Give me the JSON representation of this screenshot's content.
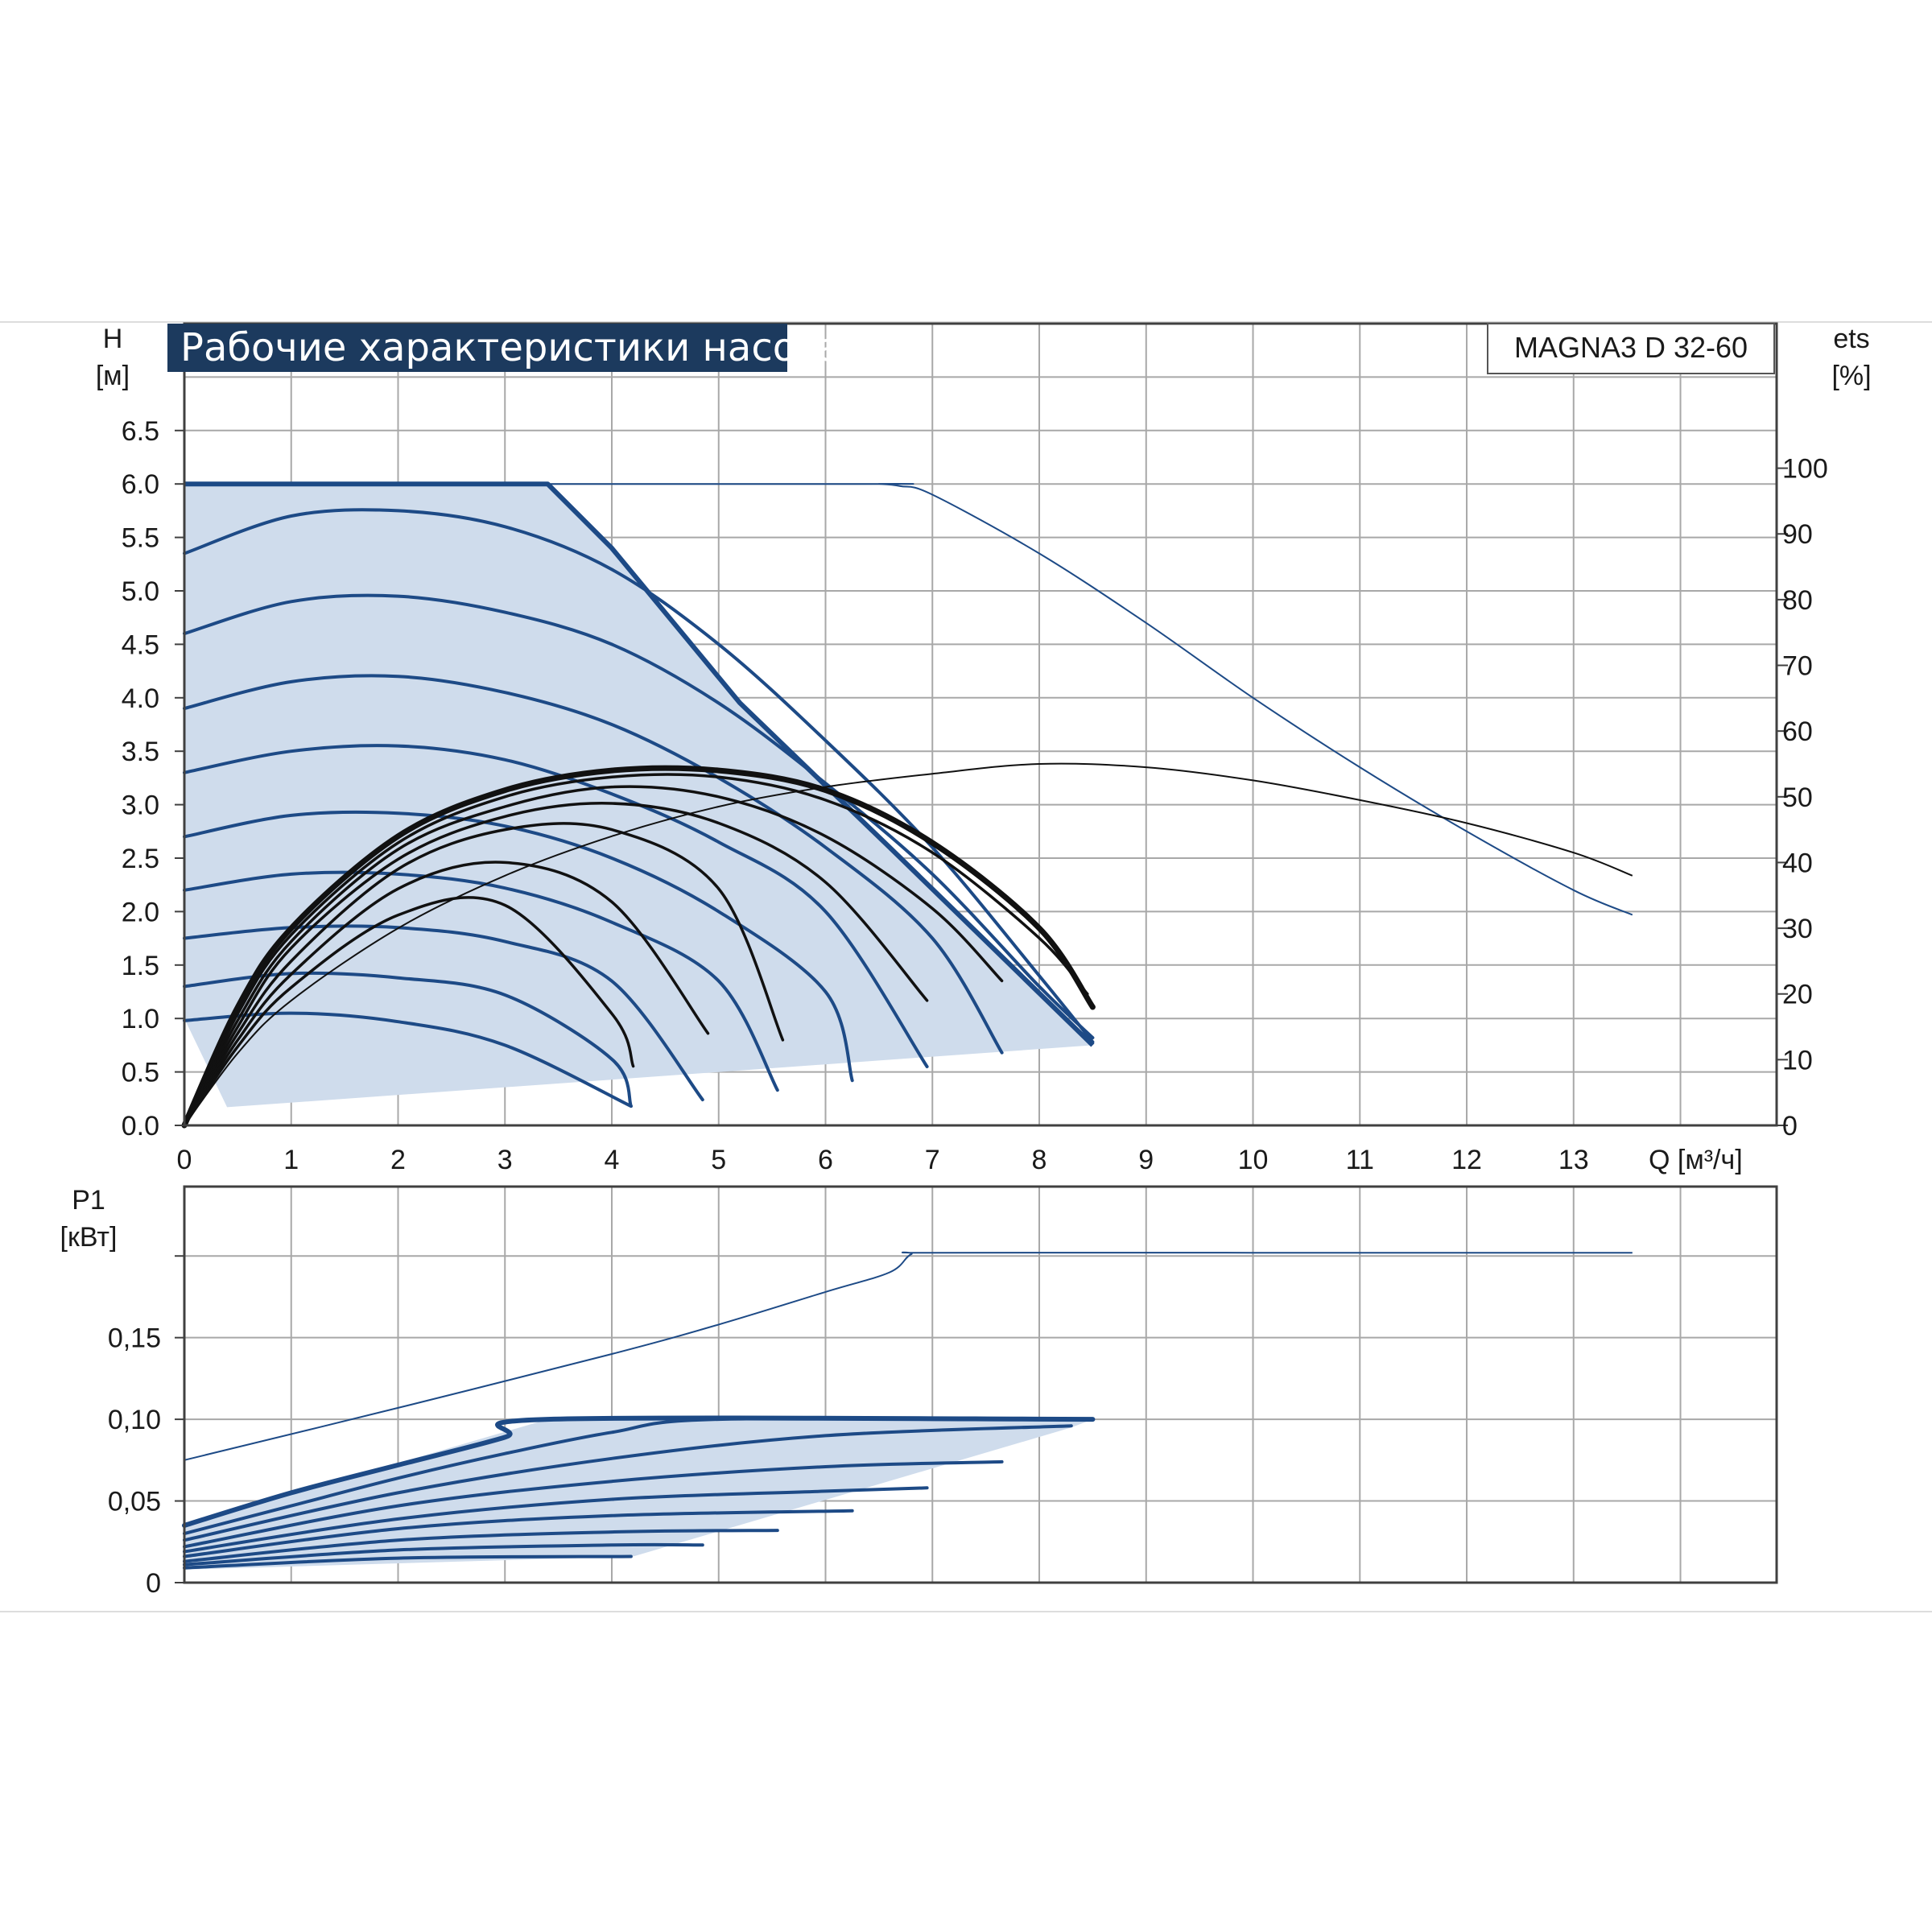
{
  "colors": {
    "curve_blue": "#1d4a86",
    "fill_blue": "#cfdcec",
    "curve_black": "#111111",
    "grid": "#a8a8a8",
    "title_bg": "#1c3a5e"
  },
  "header": {
    "title": "Рабочие характеристики насоса",
    "model": "MAGNA3 D 32-60"
  },
  "chart_data": [
    {
      "id": "head",
      "type": "line",
      "title": "Рабочие характеристики насоса",
      "ylabel_symbol": "H",
      "ylabel_unit": "[м]",
      "y2label_symbol": "ets",
      "y2label_unit": "[%]",
      "xlabel": "Q [м³/ч]",
      "xlim": [
        0,
        14.9
      ],
      "ylim": [
        0,
        7.5
      ],
      "y2lim": [
        0,
        122
      ],
      "grid": true,
      "x_ticks": [
        "0",
        "1",
        "2",
        "3",
        "4",
        "5",
        "6",
        "7",
        "8",
        "9",
        "10",
        "11",
        "12",
        "13"
      ],
      "y_ticks": [
        "0.0",
        "0.5",
        "1.0",
        "1.5",
        "2.0",
        "2.5",
        "3.0",
        "3.5",
        "4.0",
        "4.5",
        "5.0",
        "5.5",
        "6.0",
        "6.5"
      ],
      "y2_ticks": [
        "0",
        "10",
        "20",
        "30",
        "40",
        "50",
        "60",
        "70",
        "80",
        "90",
        "100"
      ],
      "operating_envelope": {
        "x": [
          0,
          3.4,
          4.0,
          5.2,
          6.6,
          8.5,
          0.4,
          0
        ],
        "y": [
          6.0,
          6.0,
          5.4,
          3.95,
          2.6,
          0.75,
          0.17,
          1.0
        ]
      },
      "max_curve": {
        "x": [
          0,
          6.3,
          6.5,
          6.7,
          7.0,
          8.0,
          9.0,
          10.0,
          11.0,
          12.0,
          13.0,
          13.55
        ],
        "y": [
          6.0,
          6.0,
          6.0,
          5.98,
          5.9,
          5.35,
          4.7,
          4.0,
          3.35,
          2.75,
          2.2,
          1.97
        ]
      },
      "max_efficiency": {
        "x": [
          0,
          0.5,
          1,
          2,
          3,
          4,
          5,
          6,
          7,
          8,
          9,
          10,
          11,
          12,
          13,
          13.55
        ],
        "y": [
          0,
          11,
          19,
          30,
          38,
          44,
          48.5,
          51.5,
          53.5,
          55,
          54.5,
          52.5,
          49.5,
          46,
          41.5,
          38
        ]
      },
      "speed_curves": [
        {
          "x": [
            0,
            1,
            2,
            3,
            4,
            5,
            6,
            7,
            8,
            8.5
          ],
          "y": [
            5.35,
            5.7,
            5.75,
            5.6,
            5.2,
            4.5,
            3.6,
            2.6,
            1.4,
            0.78
          ]
        },
        {
          "x": [
            0,
            1,
            2,
            3,
            4,
            5,
            6,
            7,
            8,
            8.5
          ],
          "y": [
            4.6,
            4.9,
            4.95,
            4.8,
            4.5,
            3.95,
            3.2,
            2.35,
            1.3,
            0.82
          ]
        },
        {
          "x": [
            0,
            1,
            2,
            3,
            4,
            5,
            6,
            7,
            7.65
          ],
          "y": [
            3.9,
            4.15,
            4.2,
            4.05,
            3.75,
            3.25,
            2.6,
            1.75,
            0.68
          ]
        },
        {
          "x": [
            0,
            1,
            2,
            3,
            4,
            5,
            6,
            6.95
          ],
          "y": [
            3.3,
            3.5,
            3.55,
            3.42,
            3.1,
            2.65,
            2.0,
            0.55
          ]
        },
        {
          "x": [
            0,
            1,
            2,
            3,
            4,
            5,
            6,
            6.25
          ],
          "y": [
            2.7,
            2.9,
            2.92,
            2.8,
            2.5,
            2.0,
            1.25,
            0.42
          ]
        },
        {
          "x": [
            0,
            1,
            2,
            3,
            4,
            5,
            5.55
          ],
          "y": [
            2.2,
            2.35,
            2.35,
            2.22,
            1.9,
            1.35,
            0.33
          ]
        },
        {
          "x": [
            0,
            1,
            2,
            3,
            4,
            4.85
          ],
          "y": [
            1.75,
            1.85,
            1.85,
            1.72,
            1.35,
            0.24
          ]
        },
        {
          "x": [
            0,
            1,
            2,
            3,
            4,
            4.18
          ],
          "y": [
            1.3,
            1.42,
            1.38,
            1.22,
            0.62,
            0.18
          ]
        },
        {
          "x": [
            0,
            1,
            2,
            3,
            4.18
          ],
          "y": [
            0.98,
            1.05,
            0.97,
            0.75,
            0.18
          ]
        }
      ],
      "efficiency_curves": [
        {
          "x": [
            0,
            0.5,
            1,
            2,
            3,
            4,
            5,
            6,
            7,
            8,
            8.5
          ],
          "y": [
            0,
            18,
            30,
            44,
            51,
            54,
            54,
            51,
            43,
            30,
            18
          ]
        },
        {
          "x": [
            0,
            0.5,
            1,
            2,
            3,
            4,
            5,
            6,
            7,
            8,
            8.45
          ],
          "y": [
            0,
            17,
            29,
            43,
            50,
            53,
            53,
            49.5,
            41.5,
            28.5,
            20
          ]
        },
        {
          "x": [
            0,
            0.5,
            1,
            2,
            3,
            4,
            5,
            6,
            7,
            7.65
          ],
          "y": [
            0,
            16,
            28,
            42,
            48.5,
            51.5,
            50,
            44,
            33,
            22
          ]
        },
        {
          "x": [
            0,
            0.5,
            1,
            2,
            3,
            4,
            5,
            6,
            6.95
          ],
          "y": [
            0,
            15,
            27,
            40.5,
            47,
            49,
            46,
            37,
            19
          ]
        },
        {
          "x": [
            0,
            0.5,
            1,
            2,
            3,
            4,
            5,
            5.6
          ],
          "y": [
            0,
            14,
            25,
            39,
            45,
            45,
            36,
            13
          ]
        },
        {
          "x": [
            0,
            0.5,
            1,
            2,
            3,
            4,
            4.9
          ],
          "y": [
            0,
            13,
            23,
            36,
            40,
            34,
            14
          ]
        },
        {
          "x": [
            0,
            0.5,
            1,
            2,
            3,
            4,
            4.2
          ],
          "y": [
            0,
            12,
            21,
            32,
            33.5,
            17,
            9
          ]
        }
      ]
    },
    {
      "id": "power",
      "type": "line",
      "ylabel_symbol": "P1",
      "ylabel_unit": "[кВт]",
      "xlim": [
        0,
        14.9
      ],
      "ylim": [
        0,
        0.2425
      ],
      "grid": true,
      "y_ticks": [
        "0",
        "0,05",
        "0,10",
        "0,15"
      ],
      "operating_envelope": {
        "x": [
          0,
          3.4,
          8.5,
          8.3,
          4.2,
          0
        ],
        "y": [
          0.035,
          0.1,
          0.1,
          0.095,
          0.016,
          0.008
        ]
      },
      "max_curve": {
        "x": [
          0,
          2,
          4,
          5,
          6,
          6.6,
          6.8,
          7,
          10,
          13,
          13.55
        ],
        "y": [
          0.075,
          0.107,
          0.14,
          0.158,
          0.178,
          0.19,
          0.201,
          0.202,
          0.202,
          0.202,
          0.202
        ]
      },
      "power_curves": [
        {
          "x": [
            0,
            1,
            2,
            3,
            3.4,
            8.5
          ],
          "y": [
            0.035,
            0.055,
            0.072,
            0.089,
            0.1,
            0.1
          ]
        },
        {
          "x": [
            0,
            1,
            2,
            3,
            4,
            5,
            8.5
          ],
          "y": [
            0.03,
            0.047,
            0.064,
            0.079,
            0.092,
            0.1,
            0.1
          ]
        },
        {
          "x": [
            0,
            2,
            4,
            6,
            8.3
          ],
          "y": [
            0.026,
            0.055,
            0.076,
            0.09,
            0.096
          ]
        },
        {
          "x": [
            0,
            2,
            4,
            6,
            7.65
          ],
          "y": [
            0.022,
            0.047,
            0.062,
            0.071,
            0.074
          ]
        },
        {
          "x": [
            0,
            2,
            4,
            6,
            6.95
          ],
          "y": [
            0.019,
            0.039,
            0.051,
            0.056,
            0.058
          ]
        },
        {
          "x": [
            0,
            2,
            4,
            6.25
          ],
          "y": [
            0.016,
            0.033,
            0.041,
            0.044
          ]
        },
        {
          "x": [
            0,
            2,
            4,
            5.55
          ],
          "y": [
            0.013,
            0.026,
            0.031,
            0.032
          ]
        },
        {
          "x": [
            0,
            2,
            4,
            4.85
          ],
          "y": [
            0.011,
            0.02,
            0.023,
            0.023
          ]
        },
        {
          "x": [
            0,
            2,
            4.18
          ],
          "y": [
            0.009,
            0.015,
            0.016
          ]
        }
      ]
    }
  ]
}
